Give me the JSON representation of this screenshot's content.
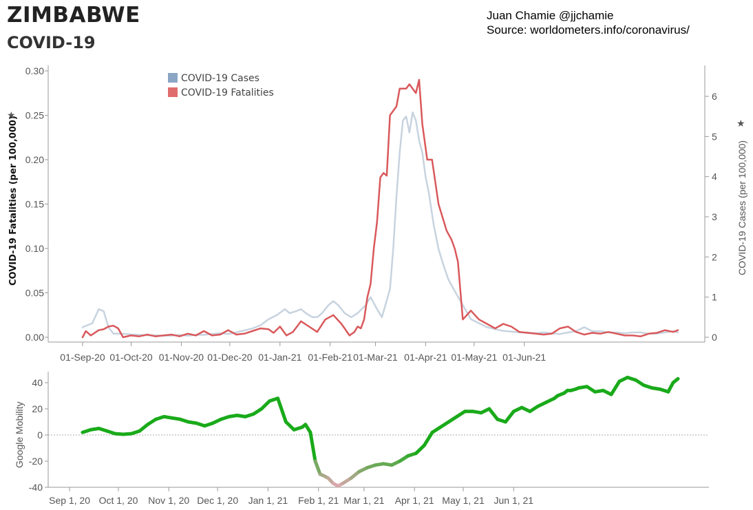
{
  "header": {
    "title": "ZIMBABWE",
    "subtitle": "COVID-19",
    "author": "Juan Chamie @jjchamie",
    "source": "Source: worldometers.info/coronavirus/"
  },
  "chart_data": [
    {
      "type": "line",
      "title": "",
      "left_axis_label": "COVID-19 Fatalities (per 100,000)",
      "right_axis_label": "COVID-19 Cases (per 100,000)",
      "left_ylim": [
        0,
        0.3
      ],
      "left_ticks": [
        "0.00",
        "0.05",
        "0.10",
        "0.15",
        "0.20",
        "0.25",
        "0.30"
      ],
      "right_ylim": [
        0,
        6
      ],
      "right_ticks": [
        "0",
        "1",
        "2",
        "3",
        "4",
        "5",
        "6"
      ],
      "x_ticks": [
        "01-Sep-20",
        "01-Oct-20",
        "01-Nov-20",
        "01-Dec-20",
        "01-Jan-21",
        "01-Feb-21",
        "01-Mar-21",
        "01-Apr-21",
        "01-May-21",
        "01-Jun-21"
      ],
      "legend": {
        "placement": "top-left",
        "items": [
          {
            "label": "COVID-19 Cases",
            "color": "#8aa6c4"
          },
          {
            "label": "COVID-19 Fatalities",
            "color": "#e06d6d"
          }
        ]
      },
      "series": [
        {
          "name": "COVID-19 Cases",
          "axis": "right",
          "color": "#c7d3df",
          "x": [
            0,
            3,
            6,
            10,
            13,
            16,
            19,
            24,
            30,
            35,
            40,
            45,
            50,
            55,
            60,
            65,
            70,
            75,
            80,
            85,
            90,
            95,
            100,
            105,
            110,
            115,
            120,
            125,
            128,
            132,
            135,
            138,
            142,
            145,
            148,
            152,
            155,
            158,
            162,
            166,
            170,
            175,
            178,
            182,
            185,
            190,
            192,
            194,
            196,
            198,
            200,
            202,
            204,
            206,
            208,
            210,
            212,
            214,
            217,
            220,
            223,
            226,
            230,
            235,
            240,
            245,
            250,
            255,
            260,
            265,
            270,
            275,
            280,
            285,
            290,
            295,
            300,
            305,
            310,
            315,
            320,
            325,
            330,
            335,
            340,
            345,
            350,
            355,
            360,
            365,
            368
          ],
          "values": [
            0.25,
            0.3,
            0.35,
            0.7,
            0.65,
            0.25,
            0.09,
            0.09,
            0.07,
            0.06,
            0.05,
            0.05,
            0.04,
            0.04,
            0.06,
            0.04,
            0.06,
            0.06,
            0.08,
            0.1,
            0.08,
            0.12,
            0.17,
            0.22,
            0.3,
            0.45,
            0.55,
            0.7,
            0.6,
            0.65,
            0.7,
            0.6,
            0.5,
            0.5,
            0.6,
            0.8,
            0.9,
            0.8,
            0.6,
            0.5,
            0.6,
            0.8,
            1.0,
            0.7,
            0.5,
            1.2,
            2.2,
            3.5,
            4.6,
            5.4,
            5.5,
            5.1,
            5.6,
            5.4,
            4.9,
            4.6,
            4.0,
            3.6,
            2.8,
            2.2,
            1.8,
            1.45,
            1.15,
            0.8,
            0.45,
            0.35,
            0.25,
            0.2,
            0.16,
            0.14,
            0.12,
            0.12,
            0.1,
            0.12,
            0.1,
            0.08,
            0.12,
            0.15,
            0.25,
            0.15,
            0.15,
            0.12,
            0.12,
            0.1,
            0.12,
            0.12,
            0.09,
            0.09,
            0.12,
            0.15,
            0.12
          ]
        },
        {
          "name": "COVID-19 Fatalities",
          "axis": "left",
          "color": "#d9585b",
          "x": [
            0,
            2,
            5,
            10,
            13,
            16,
            19,
            22,
            25,
            30,
            35,
            40,
            45,
            50,
            55,
            60,
            65,
            70,
            75,
            80,
            85,
            90,
            95,
            100,
            105,
            110,
            115,
            118,
            122,
            126,
            130,
            135,
            140,
            145,
            150,
            155,
            160,
            165,
            168,
            170,
            172,
            174,
            176,
            178,
            180,
            182,
            184,
            186,
            188,
            190,
            192,
            194,
            196,
            198,
            200,
            202,
            204,
            206,
            208,
            210,
            213,
            216,
            220,
            225,
            228,
            230,
            232,
            235,
            240,
            245,
            250,
            255,
            260,
            265,
            270,
            275,
            280,
            285,
            290,
            295,
            300,
            305,
            310,
            315,
            320,
            325,
            330,
            335,
            340,
            345,
            350,
            355,
            360,
            365,
            368
          ],
          "values": [
            0.0,
            0.007,
            0.002,
            0.008,
            0.009,
            0.012,
            0.013,
            0.01,
            0.0,
            0.002,
            0.001,
            0.003,
            0.001,
            0.002,
            0.003,
            0.001,
            0.004,
            0.002,
            0.007,
            0.002,
            0.003,
            0.008,
            0.003,
            0.004,
            0.007,
            0.01,
            0.009,
            0.005,
            0.012,
            0.002,
            0.006,
            0.018,
            0.012,
            0.006,
            0.02,
            0.025,
            0.015,
            0.002,
            0.006,
            0.012,
            0.01,
            0.02,
            0.045,
            0.06,
            0.1,
            0.13,
            0.18,
            0.185,
            0.182,
            0.25,
            0.255,
            0.26,
            0.28,
            0.28,
            0.28,
            0.285,
            0.28,
            0.275,
            0.29,
            0.24,
            0.2,
            0.2,
            0.15,
            0.12,
            0.11,
            0.1,
            0.085,
            0.02,
            0.03,
            0.02,
            0.015,
            0.01,
            0.015,
            0.012,
            0.006,
            0.005,
            0.004,
            0.003,
            0.004,
            0.01,
            0.012,
            0.006,
            0.003,
            0.005,
            0.004,
            0.006,
            0.004,
            0.002,
            0.002,
            0.001,
            0.004,
            0.005,
            0.008,
            0.006,
            0.008
          ]
        }
      ]
    },
    {
      "type": "line",
      "title": "",
      "y_axis_label": "Google Mobility",
      "ylim": [
        -40,
        45
      ],
      "y_ticks": [
        "40",
        "20",
        "0",
        "-20",
        "-40"
      ],
      "x_ticks": [
        "Sep 1, 20",
        "Oct 1, 20",
        "Nov 1, 20",
        "Dec 1, 20",
        "Jan 1, 21",
        "Feb 1, 21",
        "Mar 1, 21",
        "Apr 1, 21",
        "May 1, 21",
        "Jun 1, 21"
      ],
      "reference_line": 0,
      "colors": {
        "positive": "#1aaa1a",
        "negative": "#d8a8ac"
      },
      "series": [
        {
          "name": "Google Mobility",
          "x": [
            0,
            5,
            10,
            15,
            20,
            25,
            30,
            35,
            40,
            45,
            50,
            55,
            60,
            65,
            70,
            75,
            80,
            85,
            90,
            95,
            100,
            105,
            110,
            115,
            120,
            125,
            130,
            135,
            137,
            140,
            143,
            146,
            148,
            151,
            154,
            157,
            160,
            165,
            170,
            175,
            180,
            185,
            190,
            195,
            200,
            205,
            210,
            215,
            220,
            225,
            230,
            235,
            240,
            245,
            250,
            255,
            260,
            265,
            270,
            275,
            280,
            285,
            290,
            292,
            294,
            296,
            298,
            300,
            303,
            305,
            310,
            315,
            320,
            325,
            330,
            335,
            340,
            345,
            350,
            355,
            360,
            363,
            366
          ],
          "values": [
            2,
            4,
            5,
            3,
            1,
            0.5,
            1,
            3,
            8,
            12,
            14,
            13,
            12,
            10,
            9,
            7,
            9,
            12,
            14,
            15,
            14,
            16,
            20,
            26,
            28,
            10,
            4,
            6,
            8,
            2,
            -20,
            -30,
            -31,
            -33,
            -37,
            -39,
            -37,
            -33,
            -28,
            -25,
            -23,
            -22,
            -23,
            -20,
            -16,
            -14,
            -8,
            2,
            6,
            10,
            14,
            18,
            18,
            17,
            20,
            12,
            10,
            18,
            21,
            18,
            22,
            25,
            28,
            30,
            31,
            32,
            34,
            34,
            35,
            36,
            37,
            33,
            34,
            31,
            41,
            44,
            42,
            38,
            36,
            35,
            33,
            40,
            43
          ]
        }
      ]
    }
  ]
}
